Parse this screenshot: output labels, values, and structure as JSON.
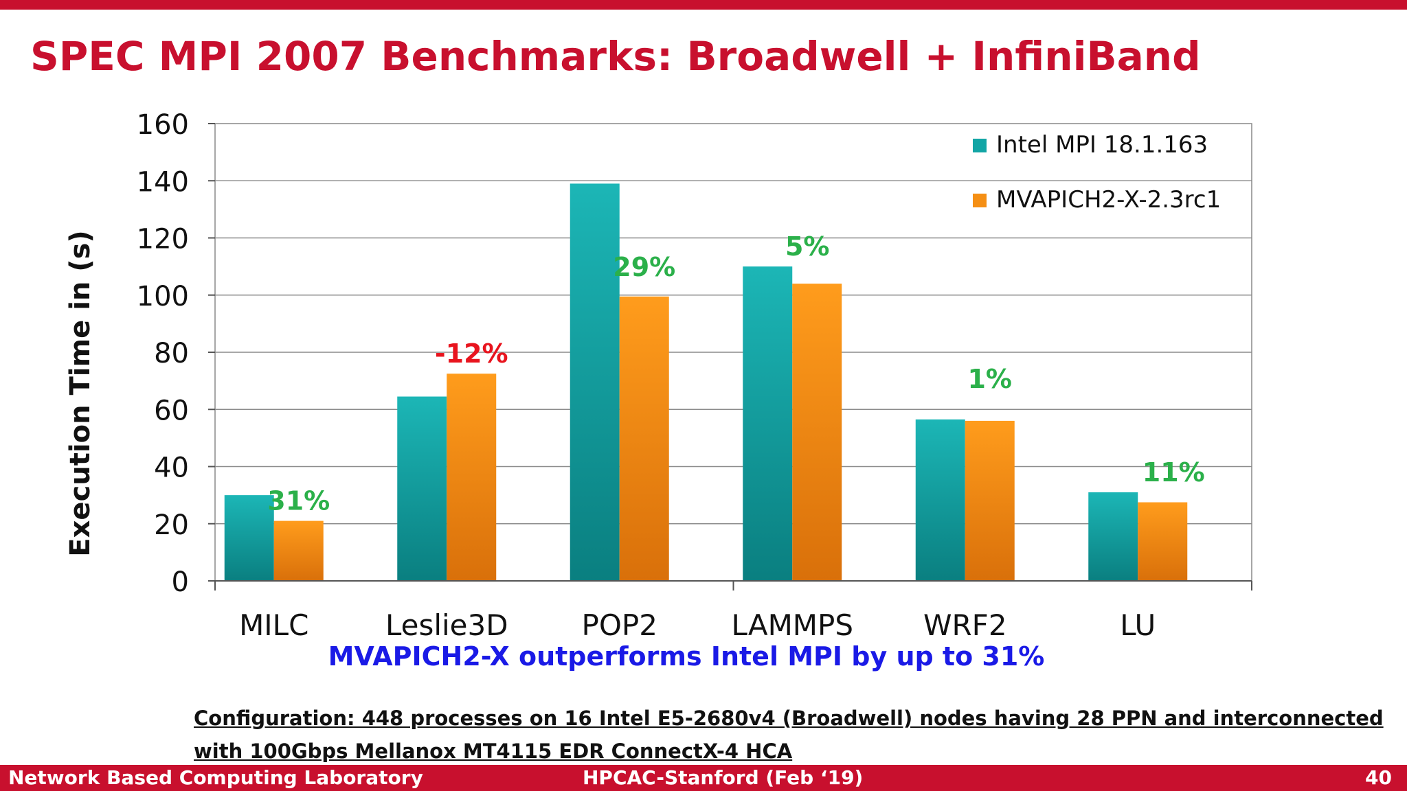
{
  "slide": {
    "title": "SPEC MPI 2007 Benchmarks:  Broadwell + InfiniBand",
    "takeaway": "MVAPICH2-X outperforms Intel MPI by up to 31%",
    "config_line1": "Configuration: 448 processes on 16 Intel E5-2680v4 (Broadwell) nodes having 28 PPN and interconnected",
    "config_line2": "with 100Gbps Mellanox MT4115 EDR ConnectX-4 HCA"
  },
  "footer": {
    "left": "Network Based Computing Laboratory",
    "center": "HPCAC-Stanford (Feb ‘19)",
    "page": "40"
  },
  "colors": {
    "accent": "#c8102e",
    "intel": "#12a5a5",
    "mvapich": "#f58f14",
    "positive_label": "#2bb04a",
    "negative_label": "#e8141e",
    "takeaway": "#1a1ae6"
  },
  "chart_data": {
    "type": "bar",
    "title": "",
    "xlabel": "",
    "ylabel": "Execution Time in (s)",
    "ylim": [
      0,
      160
    ],
    "yticks": [
      0,
      20,
      40,
      60,
      80,
      100,
      120,
      140,
      160
    ],
    "grid": true,
    "legend_position": "top-right",
    "categories": [
      "MILC",
      "Leslie3D",
      "POP2",
      "LAMMPS",
      "WRF2",
      "LU"
    ],
    "series": [
      {
        "name": "Intel MPI 18.1.163",
        "values": [
          30,
          64.5,
          139,
          110,
          56.5,
          31
        ]
      },
      {
        "name": "MVAPICH2-X-2.3rc1",
        "values": [
          21,
          72.5,
          99.5,
          104,
          56,
          27.5
        ]
      }
    ],
    "annotations": [
      "31%",
      "-12%",
      "29%",
      "5%",
      "1%",
      "11%"
    ]
  }
}
